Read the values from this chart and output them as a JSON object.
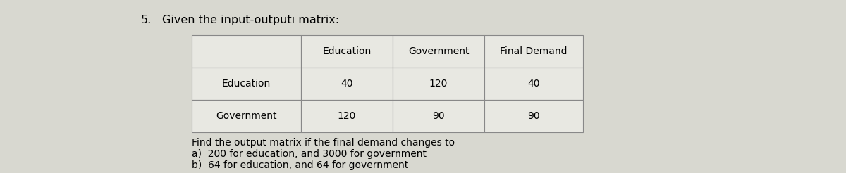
{
  "problem_number": "5.",
  "title": "Given the input-outputı matrix:",
  "col_headers": [
    "Education",
    "Government",
    "Final Demand"
  ],
  "row_headers": [
    "Education",
    "Government"
  ],
  "table_data": [
    [
      "40",
      "120",
      "40"
    ],
    [
      "120",
      "90",
      "90"
    ]
  ],
  "find_text": "Find the output matrix if the final demand changes to",
  "part_a": "a)  200 for education, and 3000 for government",
  "part_b": "b)  64 for education, and 64 for government",
  "bg_color": "#d8d8d0",
  "table_bg": "#e8e8e2",
  "border_color": "#888888",
  "text_color": "#000000",
  "font_size_title": 11.5,
  "font_size_table": 10,
  "font_size_body": 10
}
